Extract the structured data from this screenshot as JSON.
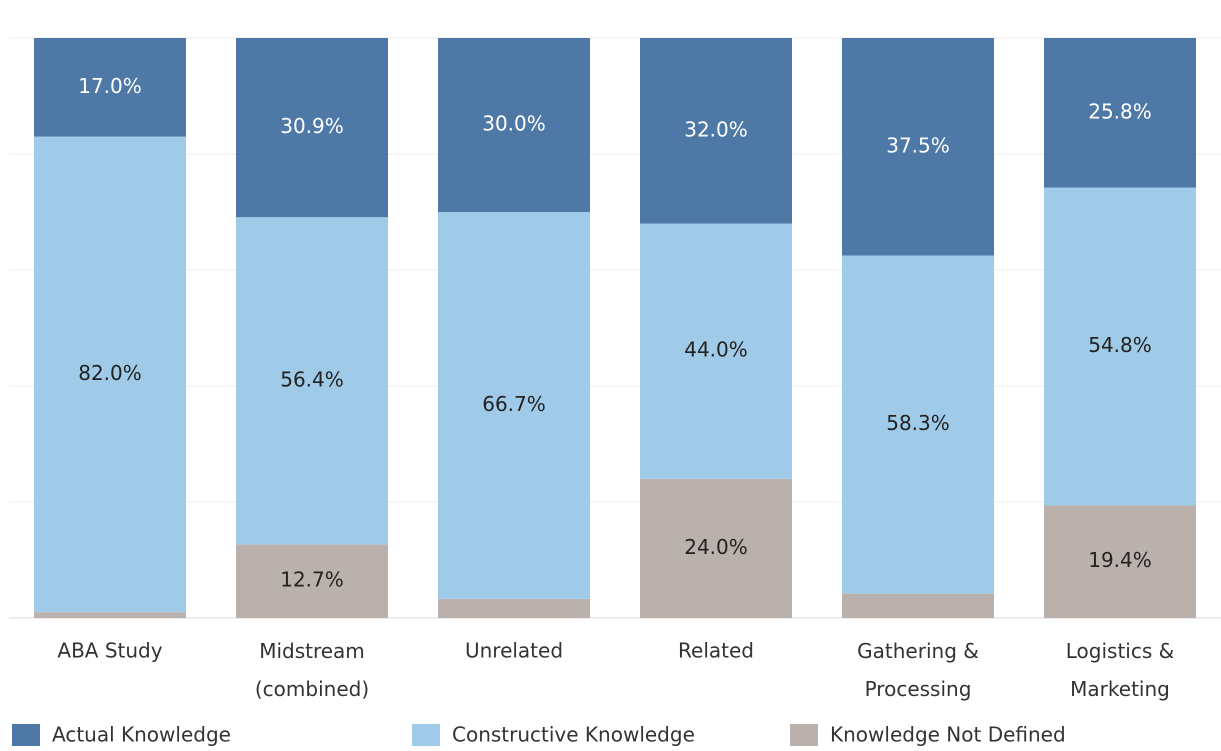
{
  "chart_data": {
    "type": "stacked_bar",
    "categories": [
      "ABA Study",
      "Midstream\n(combined)",
      "Unrelated",
      "Related",
      "Gathering &\nProcessing",
      "Logistics &\nMarketing"
    ],
    "series": [
      {
        "name": "Knowledge Not Defined",
        "color": "#bab0ac",
        "values": [
          1.0,
          12.7,
          3.3,
          24.0,
          4.2,
          19.4
        ],
        "value_labels": [
          null,
          "12.7%",
          null,
          "24.0%",
          null,
          "19.4%"
        ]
      },
      {
        "name": "Constructive Knowledge",
        "color": "#a0cbe8",
        "values": [
          82.0,
          56.4,
          66.7,
          44.0,
          58.3,
          54.8
        ],
        "value_labels": [
          "82.0%",
          "56.4%",
          "66.7%",
          "44.0%",
          "58.3%",
          "54.8%"
        ]
      },
      {
        "name": "Actual Knowledge",
        "color": "#4e79a7",
        "values": [
          17.0,
          30.9,
          30.0,
          32.0,
          37.5,
          25.8
        ],
        "value_labels": [
          "17.0%",
          "30.9%",
          "30.0%",
          "32.0%",
          "37.5%",
          "25.8%"
        ]
      }
    ],
    "legend_order": [
      2,
      1,
      0
    ],
    "ylim": [
      0,
      100
    ],
    "yticks": [
      0,
      20,
      40,
      60,
      80,
      100
    ],
    "grid": true
  }
}
